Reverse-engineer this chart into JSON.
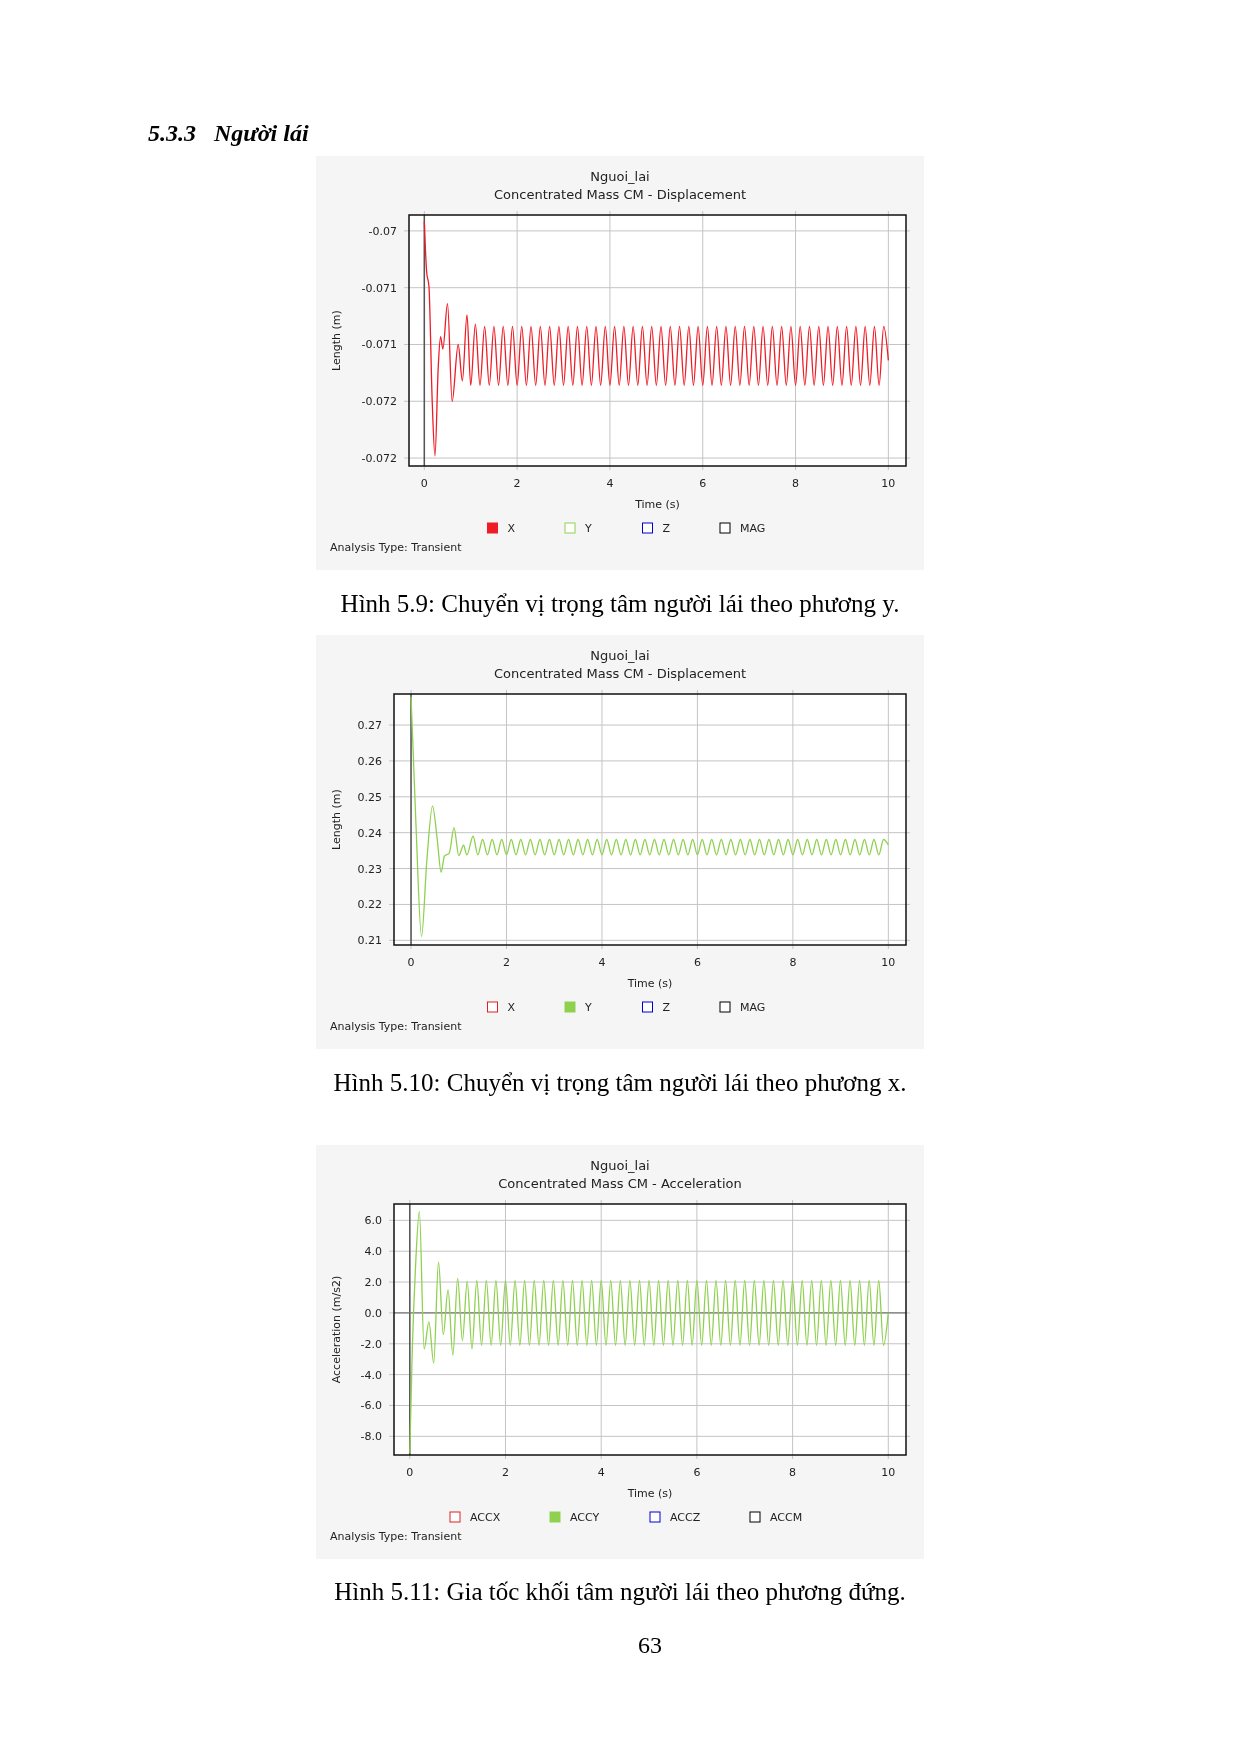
{
  "chart_data": [
    {
      "type": "line",
      "title": "Nguoi_lai",
      "subtitle": "Concentrated Mass CM - Displacement",
      "xlabel": "Time (s)",
      "ylabel": "Length (m)",
      "xlim": [
        -0.33,
        10.38
      ],
      "ylim": [
        -0.07207,
        -0.06986
      ],
      "xticks": [
        0,
        2,
        4,
        6,
        8,
        10
      ],
      "yticks": [
        -0.07,
        {
          "value": -0.0705,
          "label": "-0.071"
        },
        -0.071,
        {
          "value": -0.0715,
          "label": "-0.072"
        },
        -0.072
      ],
      "grid": true,
      "legend": "bottom",
      "ref_lines": [
        {
          "axis": "x",
          "value": 0,
          "color": "#555555"
        }
      ],
      "annotations": [
        "Analysis Type: Transient",
        "Hình 5.9: Chuyển vị trọng tâm người lái theo phương y.",
        "5.3.3   Người lái"
      ],
      "series": [
        {
          "name": "X",
          "color": "#ee1c25",
          "x": [
            0,
            0.05,
            0.1,
            0.17,
            0.23,
            0.3,
            0.35,
            0.4,
            0.5,
            0.6,
            0.73,
            0.82,
            0.92,
            1,
            1.1,
            1.2,
            1.3,
            1.4,
            1.5,
            1.6,
            1.7,
            1.8,
            1.9,
            2,
            2.1,
            2.2,
            2.3,
            2.4,
            2.5,
            2.6,
            2.7,
            2.8,
            2.9,
            3,
            3.1,
            3.2,
            3.3,
            3.4,
            3.5,
            3.6,
            3.7,
            3.8,
            3.9,
            4,
            4.1,
            4.2,
            4.3,
            4.4,
            4.5,
            4.6,
            4.7,
            4.8,
            4.9,
            5,
            5.1,
            5.2,
            5.3,
            5.4,
            5.5,
            5.6,
            5.7,
            5.8,
            5.9,
            6,
            6.1,
            6.2,
            6.3,
            6.4,
            6.5,
            6.6,
            6.7,
            6.8,
            6.9,
            7,
            7.1,
            7.2,
            7.3,
            7.4,
            7.5,
            7.6,
            7.7,
            7.8,
            7.9,
            8,
            8.1,
            8.2,
            8.3,
            8.4,
            8.5,
            8.6,
            8.7,
            8.8,
            8.9,
            9,
            9.1,
            9.2,
            9.3,
            9.4,
            9.5,
            9.6,
            9.7,
            9.8,
            9.9,
            10
          ],
          "values": [
            -0.06992,
            -0.07036,
            -0.07049,
            -0.0715,
            -0.07198,
            -0.0712,
            -0.07093,
            -0.07104,
            -0.07064,
            -0.0715,
            -0.071,
            -0.07132,
            -0.07074,
            -0.07136,
            -0.07082,
            -0.07136,
            -0.07084,
            -0.07136,
            -0.07084,
            -0.07136,
            -0.07084,
            -0.07136,
            -0.07084,
            -0.07136,
            -0.07084,
            -0.07136,
            -0.07084,
            -0.07136,
            -0.07084,
            -0.07136,
            -0.07084,
            -0.07136,
            -0.07084,
            -0.07136,
            -0.07084,
            -0.07136,
            -0.07084,
            -0.07136,
            -0.07084,
            -0.07136,
            -0.07084,
            -0.07136,
            -0.07084,
            -0.07136,
            -0.07084,
            -0.07136,
            -0.07084,
            -0.07136,
            -0.07084,
            -0.07136,
            -0.07084,
            -0.07136,
            -0.07084,
            -0.07136,
            -0.07084,
            -0.07136,
            -0.07084,
            -0.07136,
            -0.07084,
            -0.07136,
            -0.07084,
            -0.07136,
            -0.07084,
            -0.07136,
            -0.07084,
            -0.07136,
            -0.07084,
            -0.07136,
            -0.07084,
            -0.07136,
            -0.07084,
            -0.07136,
            -0.07084,
            -0.07136,
            -0.07084,
            -0.07136,
            -0.07084,
            -0.07136,
            -0.07084,
            -0.07136,
            -0.07084,
            -0.07136,
            -0.07084,
            -0.07136,
            -0.07084,
            -0.07136,
            -0.07084,
            -0.07136,
            -0.07084,
            -0.07136,
            -0.07084,
            -0.07136,
            -0.07084,
            -0.07136,
            -0.07084,
            -0.07136,
            -0.07084,
            -0.07136,
            -0.07084,
            -0.07136,
            -0.07084,
            -0.07136,
            -0.07084,
            -0.07114
          ]
        },
        {
          "name": "Y",
          "color": "#8fd14f"
        },
        {
          "name": "Z",
          "color": "#0000cc"
        },
        {
          "name": "MAG",
          "color": "#000000"
        }
      ]
    },
    {
      "type": "line",
      "title": "Nguoi_lai",
      "subtitle": "Concentrated Mass CM - Displacement",
      "xlabel": "Time (s)",
      "ylabel": "Length (m)",
      "xlim": [
        -0.357,
        10.37
      ],
      "ylim": [
        0.2087,
        0.27865
      ],
      "xticks": [
        0,
        2,
        4,
        6,
        8,
        10
      ],
      "yticks": [
        0.21,
        0.22,
        0.23,
        0.24,
        0.25,
        0.26,
        0.27
      ],
      "grid": true,
      "legend": "bottom",
      "ref_lines": [
        {
          "axis": "x",
          "value": 0,
          "color": "#555555"
        }
      ],
      "annotations": [
        "Analysis Type: Transient",
        "Hình 5.10: Chuyển vị trọng tâm người lái theo phương x."
      ],
      "series": [
        {
          "name": "X",
          "color": "#dd2222"
        },
        {
          "name": "Y",
          "color": "#8fd14f",
          "x": [
            0,
            0.1,
            0.22,
            0.33,
            0.45,
            0.55,
            0.63,
            0.7,
            0.8,
            0.9,
            1,
            1.1,
            1.17,
            1.3,
            1.4,
            1.5,
            1.6,
            1.7,
            1.8,
            1.9,
            2,
            2.1,
            2.2,
            2.3,
            2.4,
            2.5,
            2.6,
            2.7,
            2.8,
            2.9,
            3,
            3.1,
            3.2,
            3.3,
            3.4,
            3.5,
            3.6,
            3.7,
            3.8,
            3.9,
            4,
            4.1,
            4.2,
            4.3,
            4.4,
            4.5,
            4.6,
            4.7,
            4.8,
            4.9,
            5,
            5.1,
            5.2,
            5.3,
            5.4,
            5.5,
            5.6,
            5.7,
            5.8,
            5.9,
            6,
            6.1,
            6.2,
            6.3,
            6.4,
            6.5,
            6.6,
            6.7,
            6.8,
            6.9,
            7,
            7.1,
            7.2,
            7.3,
            7.4,
            7.5,
            7.6,
            7.7,
            7.8,
            7.9,
            8,
            8.1,
            8.2,
            8.3,
            8.4,
            8.5,
            8.6,
            8.7,
            8.8,
            8.9,
            9,
            9.1,
            9.2,
            9.3,
            9.4,
            9.5,
            9.6,
            9.7,
            9.8,
            9.9,
            10
          ],
          "values": [
            0.2779,
            0.2433,
            0.2111,
            0.232,
            0.2474,
            0.238,
            0.229,
            0.2335,
            0.2343,
            0.2414,
            0.2336,
            0.2365,
            0.2338,
            0.239,
            0.2338,
            0.2381,
            0.2338,
            0.2381,
            0.2338,
            0.2381,
            0.2338,
            0.2381,
            0.2338,
            0.2381,
            0.2338,
            0.2381,
            0.2338,
            0.2381,
            0.2338,
            0.2381,
            0.2338,
            0.2381,
            0.2338,
            0.2381,
            0.2338,
            0.2381,
            0.2338,
            0.2381,
            0.2338,
            0.2381,
            0.2338,
            0.2381,
            0.2338,
            0.2381,
            0.2338,
            0.2381,
            0.2338,
            0.2381,
            0.2338,
            0.2381,
            0.2338,
            0.2381,
            0.2338,
            0.2381,
            0.2338,
            0.2381,
            0.2338,
            0.2381,
            0.2338,
            0.2381,
            0.2338,
            0.2381,
            0.2338,
            0.2381,
            0.2338,
            0.2381,
            0.2338,
            0.2381,
            0.2338,
            0.2381,
            0.2338,
            0.2381,
            0.2338,
            0.2381,
            0.2338,
            0.2381,
            0.2338,
            0.2381,
            0.2338,
            0.2381,
            0.2338,
            0.2381,
            0.2338,
            0.2381,
            0.2338,
            0.2381,
            0.2338,
            0.2381,
            0.2338,
            0.2381,
            0.2338,
            0.2381,
            0.2338,
            0.2381,
            0.2338,
            0.2381,
            0.2338,
            0.2381,
            0.2338,
            0.2381,
            0.2366
          ]
        },
        {
          "name": "Z",
          "color": "#0000cc"
        },
        {
          "name": "MAG",
          "color": "#000000"
        }
      ]
    },
    {
      "type": "line",
      "title": "Nguoi_lai",
      "subtitle": "Concentrated Mass CM - Acceleration",
      "xlabel": "Time (s)",
      "ylabel": "Acceleration (m/s2)",
      "xlim": [
        -0.33,
        10.37
      ],
      "ylim": [
        -9.21,
        7.06
      ],
      "xticks": [
        0,
        2,
        4,
        6,
        8,
        10
      ],
      "yticks": [
        {
          "value": -8,
          "label": "-8.0"
        },
        {
          "value": -6,
          "label": "-6.0"
        },
        {
          "value": -4,
          "label": "-4.0"
        },
        {
          "value": -2,
          "label": "-2.0"
        },
        {
          "value": 0,
          "label": "0.0"
        },
        {
          "value": 2,
          "label": "2.0"
        },
        {
          "value": 4,
          "label": "4.0"
        },
        {
          "value": 6,
          "label": "6.0"
        }
      ],
      "grid": true,
      "legend": "bottom",
      "ref_lines": [
        {
          "axis": "x",
          "value": 0,
          "color": "#555555"
        },
        {
          "axis": "y",
          "value": 0,
          "color": "#777777"
        }
      ],
      "annotations": [
        "Analysis Type: Transient",
        "Hình 5.11: Gia tốc khối tâm người lái theo phương đứng.",
        "63"
      ],
      "series": [
        {
          "name": "ACCX",
          "color": "#dd2222"
        },
        {
          "name": "ACCY",
          "color": "#8fd14f",
          "x": [
            0,
            0.05,
            0.12,
            0.2,
            0.3,
            0.4,
            0.5,
            0.6,
            0.7,
            0.8,
            0.9,
            1,
            1.1,
            1.2,
            1.3,
            1.4,
            1.5,
            1.6,
            1.7,
            1.8,
            1.9,
            2,
            2.1,
            2.2,
            2.3,
            2.4,
            2.5,
            2.6,
            2.7,
            2.8,
            2.9,
            3,
            3.1,
            3.2,
            3.3,
            3.4,
            3.5,
            3.6,
            3.7,
            3.8,
            3.9,
            4,
            4.1,
            4.2,
            4.3,
            4.4,
            4.5,
            4.6,
            4.7,
            4.8,
            4.9,
            5,
            5.1,
            5.2,
            5.3,
            5.4,
            5.5,
            5.6,
            5.7,
            5.8,
            5.9,
            6,
            6.1,
            6.2,
            6.3,
            6.4,
            6.5,
            6.6,
            6.7,
            6.8,
            6.9,
            7,
            7.1,
            7.2,
            7.3,
            7.4,
            7.5,
            7.6,
            7.7,
            7.8,
            7.9,
            8,
            8.1,
            8.2,
            8.3,
            8.4,
            8.5,
            8.6,
            8.7,
            8.8,
            8.9,
            9,
            9.1,
            9.2,
            9.3,
            9.4,
            9.5,
            9.6,
            9.7,
            9.8,
            9.9,
            10
          ],
          "values": [
            -9.1,
            -2.6,
            3,
            6.58,
            -2.34,
            -0.58,
            -3.25,
            3.31,
            -1.41,
            1.5,
            -2.74,
            2.23,
            -1.79,
            2.05,
            -2.34,
            2.1,
            -2.1,
            2.1,
            -2.1,
            2.1,
            -2.1,
            2.1,
            -2.1,
            2.1,
            -2.1,
            2.1,
            -2.1,
            2.1,
            -2.1,
            2.1,
            -2.1,
            2.1,
            -2.1,
            2.1,
            -2.1,
            2.1,
            -2.1,
            2.1,
            -2.1,
            2.1,
            -2.1,
            2.1,
            -2.1,
            2.1,
            -2.1,
            2.1,
            -2.1,
            2.1,
            -2.1,
            2.1,
            -2.1,
            2.1,
            -2.1,
            2.1,
            -2.1,
            2.1,
            -2.1,
            2.1,
            -2.1,
            2.1,
            -2.1,
            2.1,
            -2.1,
            2.1,
            -2.1,
            2.1,
            -2.1,
            2.1,
            -2.1,
            2.1,
            -2.1,
            2.1,
            -2.1,
            2.1,
            -2.1,
            2.1,
            -2.1,
            2.1,
            -2.1,
            2.1,
            -2.1,
            2.1,
            -2.1,
            2.1,
            -2.1,
            2.1,
            -2.1,
            2.1,
            -2.1,
            2.1,
            -2.1,
            2.1,
            -2.1,
            2.1,
            -2.1,
            2.1,
            -2.1,
            2.1,
            -2.1,
            2.1,
            -2.1,
            0
          ]
        },
        {
          "name": "ACCZ",
          "color": "#0000cc"
        },
        {
          "name": "ACCM",
          "color": "#000000"
        }
      ]
    }
  ]
}
